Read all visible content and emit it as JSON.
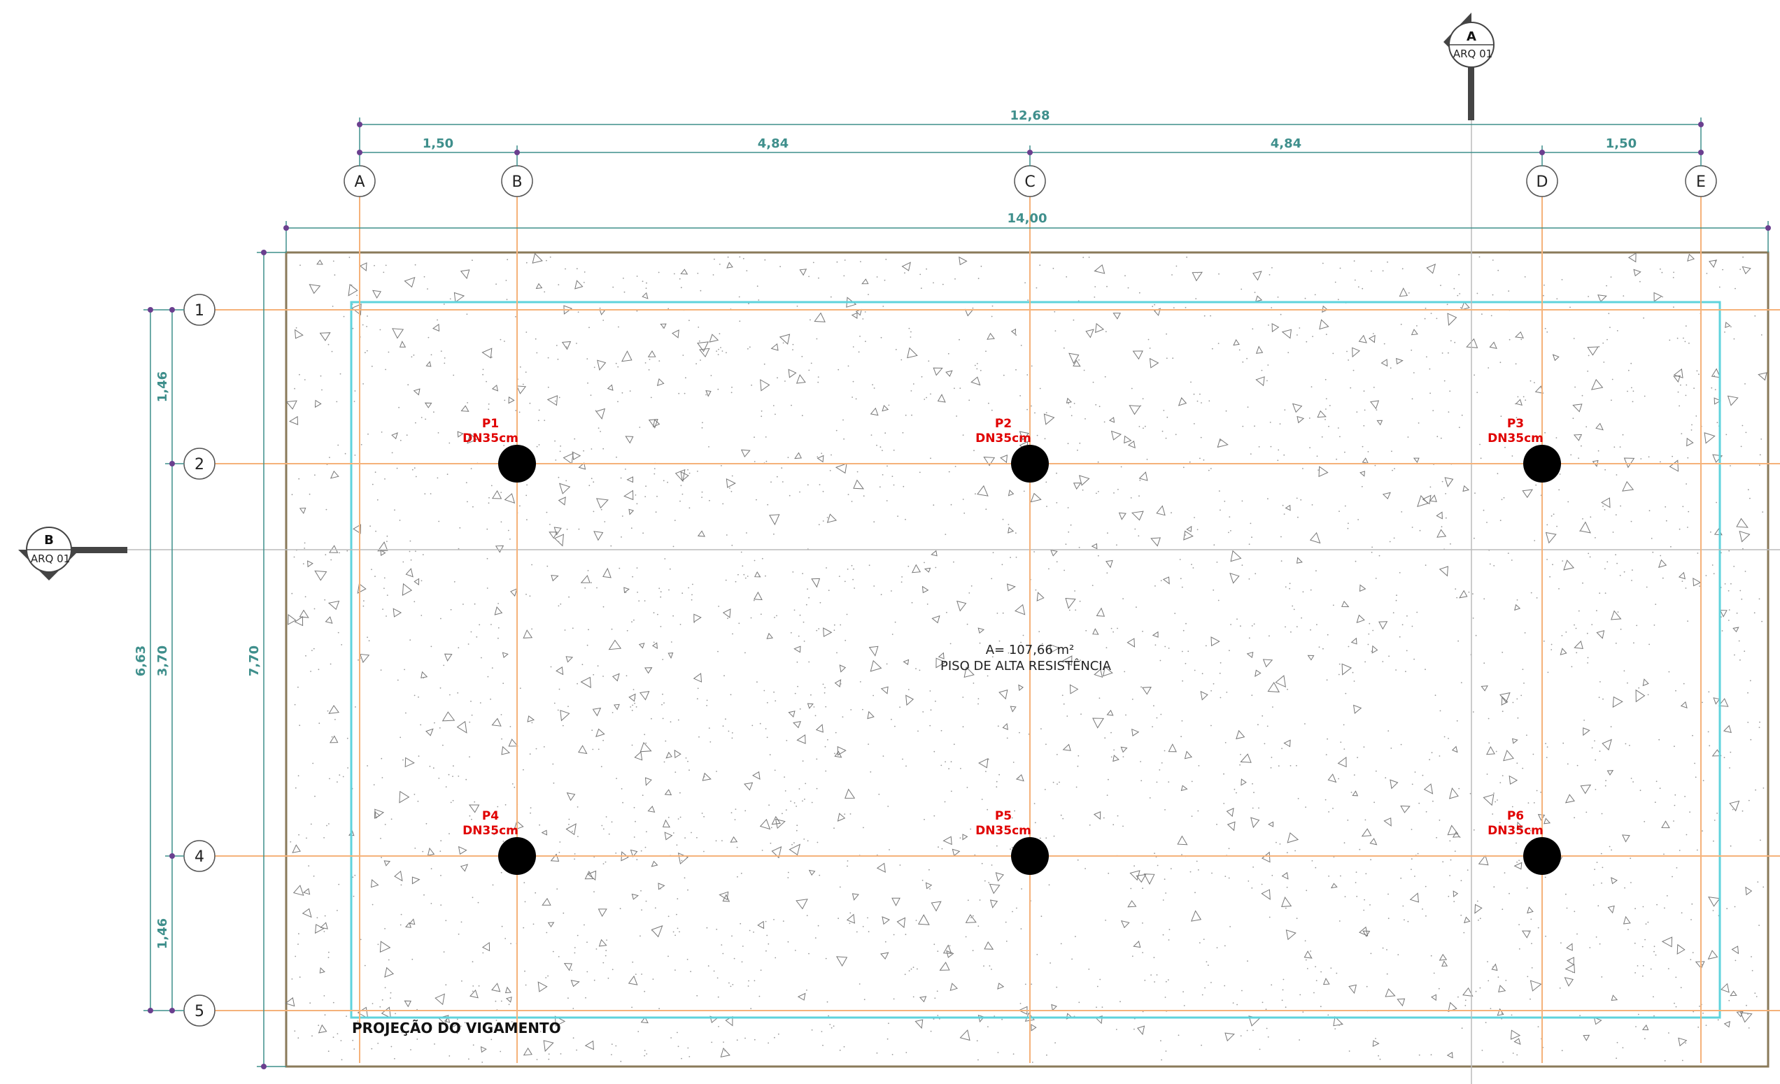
{
  "drawing": {
    "area_label": "A= 107,66 m²",
    "floor_label": "PISO DE ALTA RESISTÊNCIA",
    "beam_projection_label": "PROJEÇÃO DO VIGAMENTO"
  },
  "grid": {
    "columns": [
      "A",
      "B",
      "C",
      "D",
      "E"
    ],
    "rows": [
      "1",
      "2",
      "4",
      "5"
    ]
  },
  "dimensions": {
    "top_total": "12,68",
    "top_segments": [
      "1,50",
      "4,84",
      "4,84",
      "1,50"
    ],
    "slab_width": "14,00",
    "slab_height": "7,70",
    "left_total": "6,63",
    "left_segments": [
      "1,46",
      "3,70",
      "1,46"
    ]
  },
  "pillars": [
    {
      "name": "P1",
      "section": "DN35cm"
    },
    {
      "name": "P2",
      "section": "DN35cm"
    },
    {
      "name": "P3",
      "section": "DN35cm"
    },
    {
      "name": "P4",
      "section": "DN35cm"
    },
    {
      "name": "P5",
      "section": "DN35cm"
    },
    {
      "name": "P6",
      "section": "DN35cm"
    }
  ],
  "section_markers": [
    {
      "letter": "A",
      "sheet": "ARQ 01"
    },
    {
      "letter": "B",
      "sheet": "ARQ 01"
    }
  ],
  "colors": {
    "grid_line": "#f5b27a",
    "dimension": "#3f8f8c",
    "dimension_dot": "#6a3f8f",
    "beam_projection": "#5fd3dc",
    "slab_border": "#8a7a5a",
    "pillar_label": "#e00000",
    "pillar_fill": "#000000"
  }
}
